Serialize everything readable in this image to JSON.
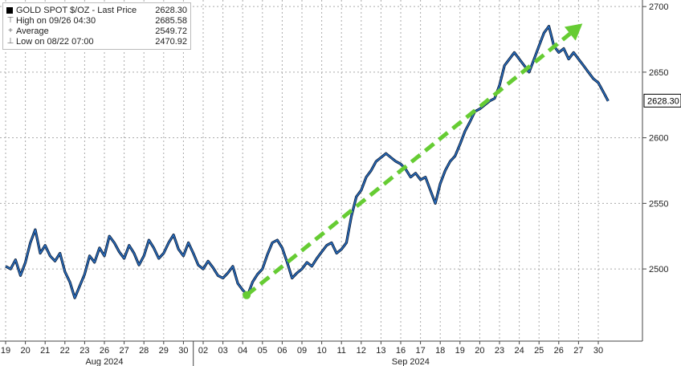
{
  "chart_data": {
    "type": "line",
    "title": "GOLD SPOT $/OZ",
    "legend": {
      "placement": "top-left",
      "entries": [
        {
          "label": "GOLD SPOT $/OZ - Last Price",
          "value": "2628.30",
          "icon": "square-swatch"
        },
        {
          "label": "High on 09/26 04:30",
          "value": "2685.58",
          "icon": "high-marker-icon"
        },
        {
          "label": "Average",
          "value": "2549.72",
          "icon": "average-marker-icon"
        },
        {
          "label": "Low on 08/22 07:00",
          "value": "2470.92",
          "icon": "low-marker-icon"
        }
      ]
    },
    "y_axis": {
      "position": "right",
      "ticks": [
        "2700",
        "2650",
        "2600",
        "2550",
        "2500"
      ],
      "ylim": [
        2445,
        2705
      ]
    },
    "x_axis": {
      "day_ticks": [
        "19",
        "20",
        "21",
        "22",
        "23",
        "26",
        "27",
        "28",
        "29",
        "30",
        "02",
        "03",
        "04",
        "05",
        "06",
        "09",
        "10",
        "11",
        "12",
        "13",
        "16",
        "17",
        "18",
        "19",
        "20",
        "23",
        "24",
        "25",
        "26",
        "27",
        "30"
      ],
      "month_labels": [
        "Aug 2024",
        "Sep 2024"
      ]
    },
    "last_price_label": "2628.30",
    "series": [
      {
        "name": "GOLD SPOT $/OZ - Last Price",
        "color": "#2a6ebf",
        "x": [
          0,
          0.25,
          0.5,
          0.75,
          1,
          1.25,
          1.5,
          1.75,
          2,
          2.25,
          2.5,
          2.75,
          3,
          3.25,
          3.5,
          3.75,
          4,
          4.25,
          4.5,
          4.75,
          5,
          5.25,
          5.5,
          5.75,
          6,
          6.25,
          6.5,
          6.75,
          7,
          7.25,
          7.5,
          7.75,
          8,
          8.25,
          8.5,
          8.75,
          9,
          9.25,
          9.5,
          9.75,
          10,
          10.25,
          10.5,
          10.75,
          11,
          11.25,
          11.5,
          11.75,
          12,
          12.25,
          12.5,
          12.75,
          13,
          13.25,
          13.5,
          13.75,
          14,
          14.25,
          14.5,
          14.75,
          15,
          15.25,
          15.5,
          15.75,
          16,
          16.25,
          16.5,
          16.75,
          17,
          17.25,
          17.5,
          17.75,
          18,
          18.25,
          18.5,
          18.75,
          19,
          19.25,
          19.5,
          19.75,
          20,
          20.25,
          20.5,
          20.75,
          21,
          21.25,
          21.5,
          21.75,
          22,
          22.25,
          22.5,
          22.75,
          23,
          23.25,
          23.5,
          23.75,
          24,
          24.25,
          24.5,
          24.75,
          25,
          25.25,
          25.5,
          25.75,
          26,
          26.25,
          26.5,
          26.75,
          27,
          27.25,
          27.5,
          27.75,
          28,
          28.25,
          28.5,
          28.75,
          29,
          29.25,
          29.5,
          29.75,
          30,
          30.25,
          30.5
        ],
        "y": [
          2502,
          2500,
          2507,
          2495,
          2505,
          2520,
          2530,
          2512,
          2518,
          2510,
          2506,
          2512,
          2498,
          2490,
          2478,
          2487,
          2496,
          2510,
          2505,
          2516,
          2510,
          2525,
          2520,
          2513,
          2508,
          2518,
          2512,
          2503,
          2510,
          2522,
          2516,
          2508,
          2512,
          2520,
          2526,
          2515,
          2510,
          2520,
          2512,
          2503,
          2500,
          2506,
          2501,
          2495,
          2493,
          2497,
          2502,
          2489,
          2484,
          2480,
          2490,
          2496,
          2500,
          2511,
          2520,
          2522,
          2516,
          2505,
          2493,
          2497,
          2500,
          2505,
          2502,
          2508,
          2513,
          2518,
          2520,
          2512,
          2515,
          2520,
          2540,
          2555,
          2560,
          2570,
          2575,
          2582,
          2585,
          2588,
          2585,
          2582,
          2580,
          2576,
          2570,
          2573,
          2568,
          2570,
          2560,
          2550,
          2565,
          2575,
          2582,
          2586,
          2595,
          2605,
          2612,
          2620,
          2622,
          2625,
          2628,
          2630,
          2640,
          2655,
          2660,
          2665,
          2660,
          2655,
          2650,
          2660,
          2670,
          2680,
          2685,
          2670,
          2665,
          2668,
          2660,
          2665,
          2660,
          2655,
          2650,
          2645,
          2642,
          2635,
          2628
        ]
      }
    ],
    "annotation": {
      "type": "dashed-arrow",
      "color": "#66cc33",
      "from": {
        "x": 12.2,
        "y": 2480
      },
      "to": {
        "x": 29.2,
        "y": 2687
      }
    },
    "grid": true
  }
}
